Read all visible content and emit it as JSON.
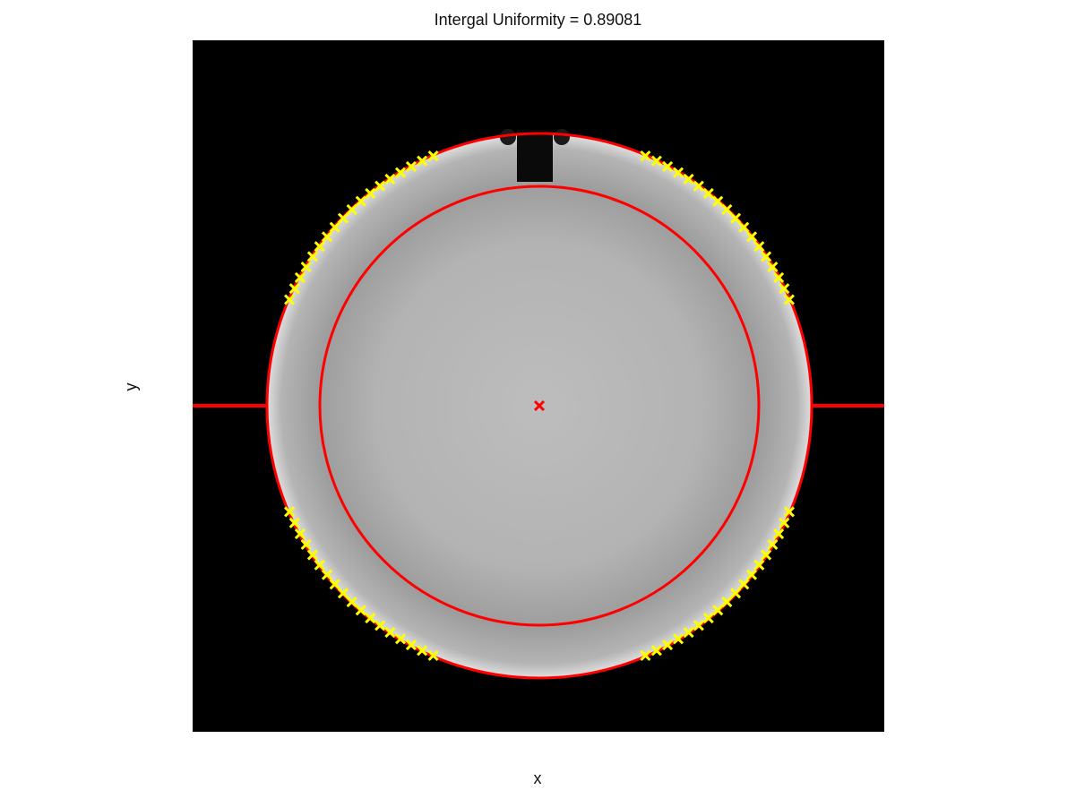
{
  "figure": {
    "title": "Intergal Uniformity = 0.89081",
    "xlabel": "x",
    "ylabel": "y"
  },
  "colors": {
    "background": "#000000",
    "phantom_edge": "#d8d8d8",
    "phantom_center": "#bdbdbd",
    "fit_circle": "#ff0000",
    "edge_markers": "#ffff00",
    "center_marker": "#ff0000"
  },
  "image": {
    "type": "phantom-slice",
    "notch": "top"
  }
}
